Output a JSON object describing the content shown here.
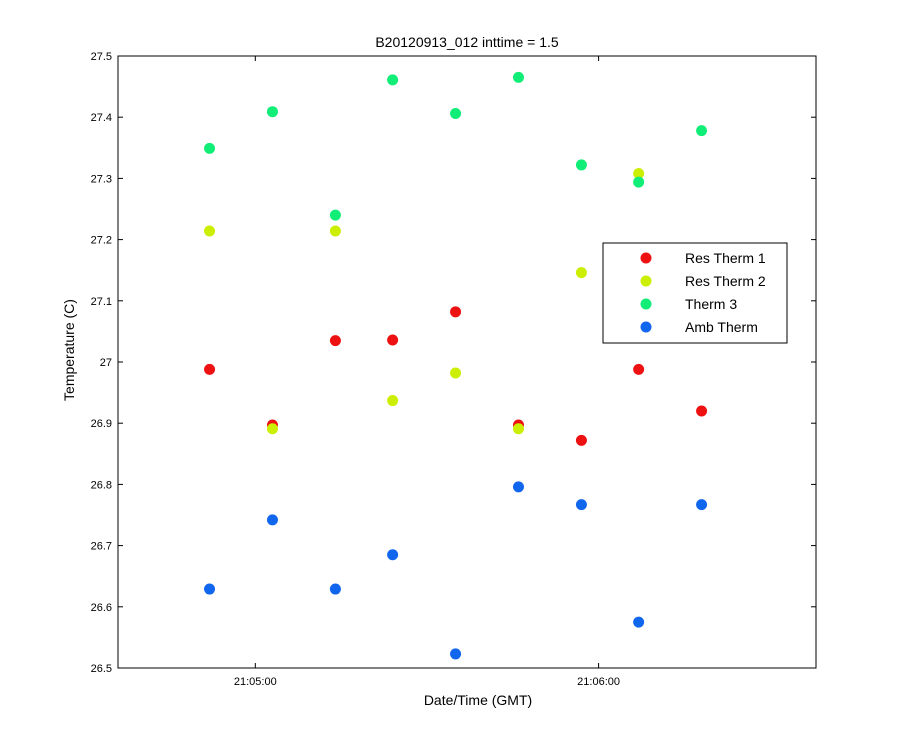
{
  "chart_data": {
    "type": "scatter",
    "title": "B20120913_012 inttime = 1.5",
    "xlabel": "Date/Time (GMT)",
    "ylabel": "Temperature (C)",
    "ylim": [
      26.5,
      27.5
    ],
    "xlim": [
      "21:04:36",
      "21:06:38"
    ],
    "yticks": [
      "26.5",
      "26.6",
      "26.7",
      "26.8",
      "26.9",
      "27",
      "27.1",
      "27.2",
      "27.3",
      "27.4",
      "27.5"
    ],
    "xticks": [
      "21:05:00",
      "21:06:00"
    ],
    "grid": false,
    "legend_position": "right",
    "x": [
      "21:04:52",
      "21:05:03",
      "21:05:14",
      "21:05:24",
      "21:05:35",
      "21:05:46",
      "21:05:57",
      "21:06:07",
      "21:06:18"
    ],
    "series": [
      {
        "name": "Res Therm 1",
        "color": "#ee1111",
        "values": [
          26.988,
          26.897,
          27.035,
          27.036,
          27.082,
          26.897,
          26.872,
          26.988,
          26.92
        ]
      },
      {
        "name": "Res Therm 2",
        "color": "#ccee00",
        "values": [
          27.214,
          26.891,
          27.214,
          26.937,
          26.982,
          26.891,
          27.146,
          27.308,
          null
        ]
      },
      {
        "name": "Therm 3",
        "color": "#11ee77",
        "values": [
          27.349,
          27.409,
          27.24,
          27.461,
          27.406,
          27.465,
          27.322,
          27.294,
          27.378
        ]
      },
      {
        "name": "Amb Therm",
        "color": "#1166ee",
        "values": [
          26.629,
          26.742,
          26.629,
          26.685,
          26.523,
          26.796,
          26.767,
          26.575,
          26.767
        ]
      }
    ]
  }
}
